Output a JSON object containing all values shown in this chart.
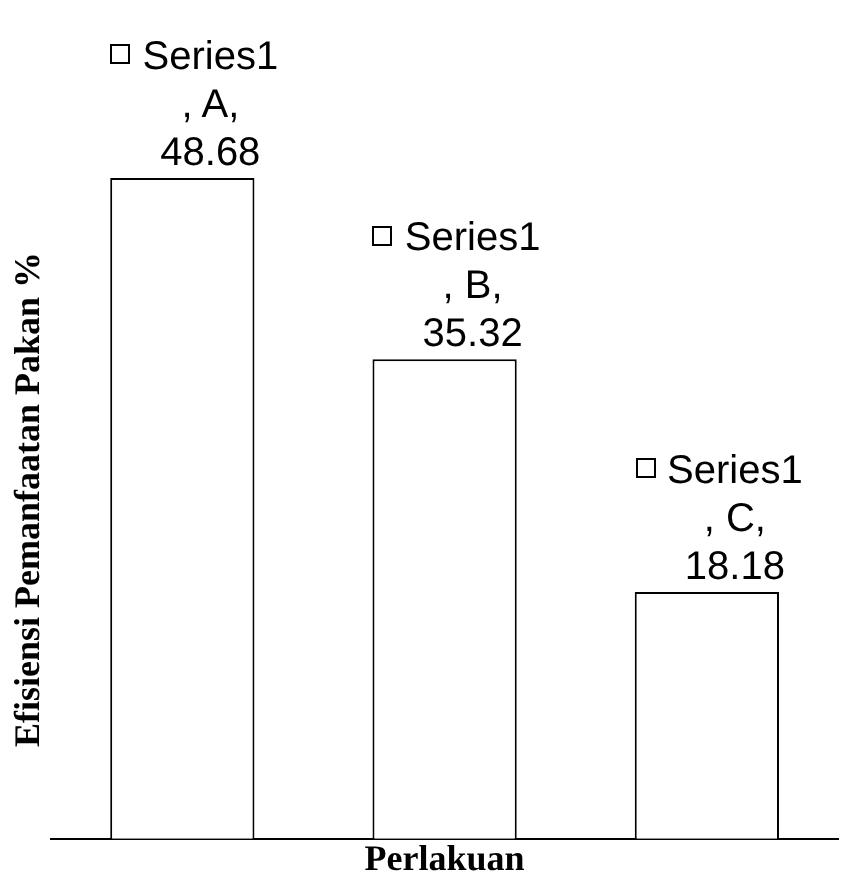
{
  "chart_data": {
    "type": "bar",
    "xlabel": "Perlakuan",
    "ylabel": "Efisiensi Pemanfaatan Pakan %",
    "categories": [
      null,
      null,
      null
    ],
    "series": [
      {
        "color": "#ffffff",
        "values": [
          48.68,
          35.32,
          18.18
        ],
        "value_labels": [
          "Series1\n, A,\n48.68",
          "Series1\n, B,\n35.32",
          "Series1\n, C,\n18.18"
        ]
      }
    ],
    "tick_labels": false,
    "grid": false,
    "legend": false
  }
}
